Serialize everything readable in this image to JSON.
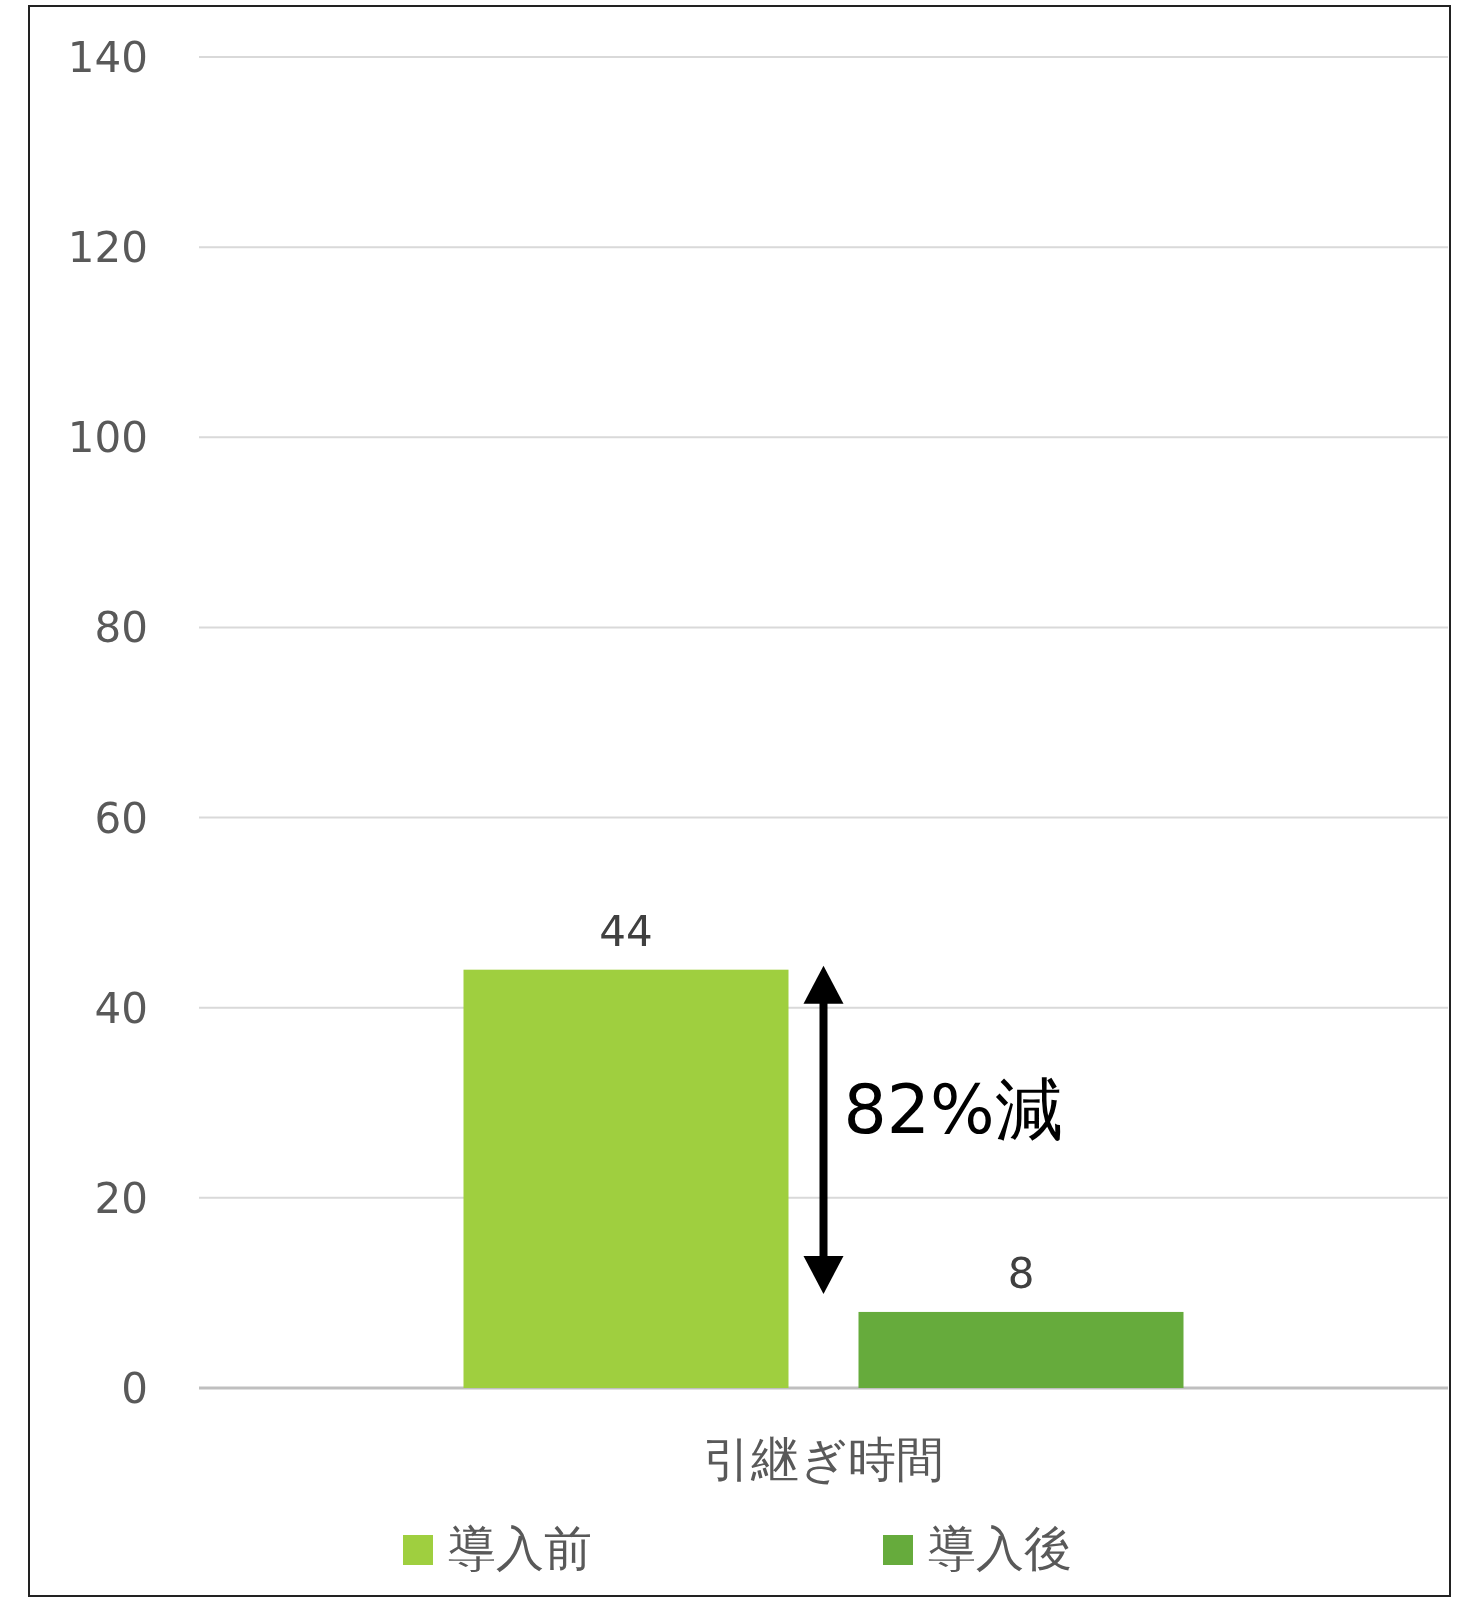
{
  "chart_data": {
    "type": "bar",
    "categories": [
      "引継ぎ時間"
    ],
    "series": [
      {
        "name": "導入前",
        "color": "#9fcf3f",
        "values": [
          44
        ]
      },
      {
        "name": "導入後",
        "color": "#66ab3c",
        "values": [
          8
        ]
      }
    ],
    "ylim": [
      0,
      140
    ],
    "yticks": [
      0,
      20,
      40,
      60,
      80,
      100,
      120,
      140
    ],
    "grid": "y",
    "legend": "bottom",
    "data_labels": true,
    "annotations": [
      "82%減"
    ]
  }
}
